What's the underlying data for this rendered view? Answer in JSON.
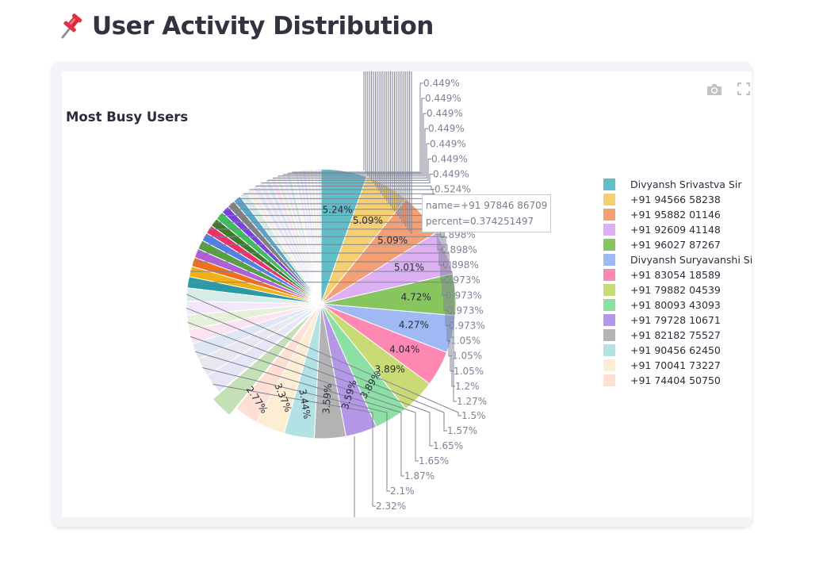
{
  "page": {
    "title": "User Activity Distribution",
    "title_icon": "pushpin-icon"
  },
  "toolbar": {
    "camera_icon": "camera-icon",
    "fullscreen_icon": "fullscreen-icon"
  },
  "tooltip": {
    "name_line": "name=+91 97846 86709",
    "percent_line": "percent=0.374251497"
  },
  "chart_data": {
    "type": "pie",
    "title": "Most Busy Users",
    "colors": [
      "#5fbfc9",
      "#f5cf72",
      "#f59f74",
      "#dcb0f2",
      "#87c55f",
      "#9eb9f3",
      "#fe88b1",
      "#c9db74",
      "#8be0a4",
      "#b497e7",
      "#b3b3b3",
      "#b3e2e5",
      "#fdedd3",
      "#fddfd4"
    ],
    "slices": [
      {
        "label": "Divyansh Srivastva Sir",
        "percent": 5.24,
        "show_value": true
      },
      {
        "label": "+91 94566 58238",
        "percent": 5.09,
        "show_value": true
      },
      {
        "label": "+91 95882 01146",
        "percent": 5.09,
        "show_value": true
      },
      {
        "label": "+91 92609 41148",
        "percent": 5.01,
        "show_value": true
      },
      {
        "label": "+91 96027 87267",
        "percent": 4.72,
        "show_value": true
      },
      {
        "label": "Divyansh Suryavanshi Sir",
        "percent": 4.27,
        "show_value": true
      },
      {
        "label": "+91 83054 18589",
        "percent": 4.04,
        "show_value": true
      },
      {
        "label": "+91 79882 04539",
        "percent": 3.89,
        "show_value": true
      },
      {
        "label": "+91 80093 43093",
        "percent": 3.89,
        "show_value": true
      },
      {
        "label": "+91 79728 10671",
        "percent": 3.59,
        "show_value": true
      },
      {
        "label": "+91 82182 75527",
        "percent": 3.59,
        "show_value": true
      },
      {
        "label": "+91 90456 62450",
        "percent": 3.44,
        "show_value": true
      },
      {
        "label": "+91 70041 73227",
        "percent": 3.37,
        "show_value": true
      },
      {
        "label": "+91 74404 50750",
        "percent": 2.77,
        "show_value": true
      },
      {
        "label": "",
        "percent": 2.62
      },
      {
        "label": "",
        "percent": 2.32
      },
      {
        "label": "",
        "percent": 2.1
      },
      {
        "label": "",
        "percent": 1.87
      },
      {
        "label": "",
        "percent": 1.65
      },
      {
        "label": "",
        "percent": 1.65
      },
      {
        "label": "",
        "percent": 1.57
      },
      {
        "label": "",
        "percent": 1.5
      },
      {
        "label": "",
        "percent": 1.27
      },
      {
        "label": "",
        "percent": 1.2
      },
      {
        "label": "",
        "percent": 1.05
      },
      {
        "label": "",
        "percent": 1.05
      },
      {
        "label": "",
        "percent": 1.05
      },
      {
        "label": "",
        "percent": 0.973
      },
      {
        "label": "",
        "percent": 0.973
      },
      {
        "label": "",
        "percent": 0.973
      },
      {
        "label": "",
        "percent": 0.973
      },
      {
        "label": "",
        "percent": 0.898
      },
      {
        "label": "",
        "percent": 0.898
      },
      {
        "label": "",
        "percent": 0.898
      },
      {
        "label": "",
        "percent": 0.898
      },
      {
        "label": "",
        "percent": 0.823
      },
      {
        "label": "",
        "percent": 0.748
      },
      {
        "label": "",
        "percent": 0.748
      },
      {
        "label": "",
        "percent": 0.674
      },
      {
        "label": "",
        "percent": 0.674
      },
      {
        "label": "",
        "percent": 0.599
      },
      {
        "label": "",
        "percent": 0.599
      },
      {
        "label": "",
        "percent": 0.524
      },
      {
        "label": "",
        "percent": 0.449
      },
      {
        "label": "",
        "percent": 0.449
      },
      {
        "label": "",
        "percent": 0.449
      },
      {
        "label": "",
        "percent": 0.449
      },
      {
        "label": "",
        "percent": 0.449
      },
      {
        "label": "",
        "percent": 0.449
      },
      {
        "label": "",
        "percent": 0.449
      },
      {
        "label": "+91 97846 86709",
        "percent": 0.374
      }
    ],
    "visible_outside_labels": [
      "2.32%",
      "2.1%",
      "1.87%",
      "1.65%",
      "1.65%",
      "1.57%",
      "1.5%",
      "1.27%",
      "1.2%",
      "1.05%",
      "1.05%",
      "1.05%",
      "0.973%",
      "0.973%",
      "0.973%",
      "0.973%",
      "0.898%",
      "0.898%",
      "0.898%",
      "0.898%",
      "0.599%",
      "0.524%",
      "0.449%",
      "0.449%",
      "0.449%",
      "0.449%",
      "0.449%",
      "0.449%",
      "0.449%"
    ],
    "legend_position": "right",
    "legend": [
      "Divyansh Srivastva Sir",
      "+91 94566 58238",
      "+91 95882 01146",
      "+91 92609 41148",
      "+91 96027 87267",
      "Divyansh Suryavanshi Sir",
      "+91 83054 18589",
      "+91 79882 04539",
      "+91 80093 43093",
      "+91 79728 10671",
      "+91 82182 75527",
      "+91 90456 62450",
      "+91 70041 73227",
      "+91 74404 50750"
    ]
  }
}
